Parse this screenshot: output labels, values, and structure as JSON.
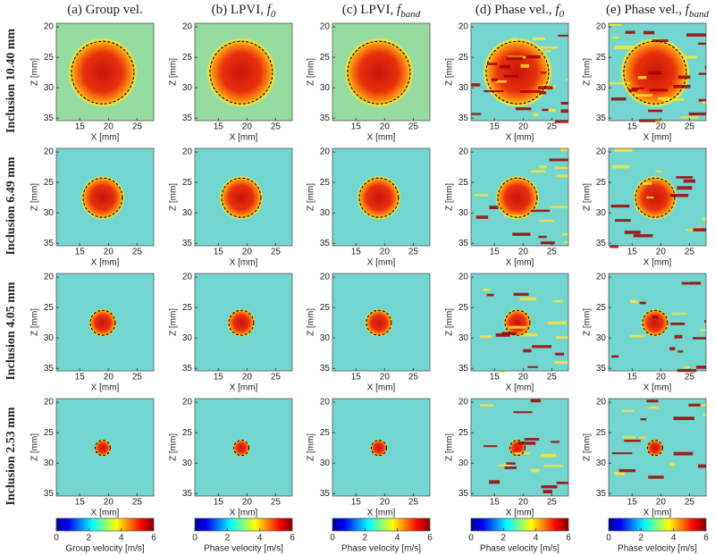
{
  "columns": [
    {
      "prefix": "(a) Group vel."
    },
    {
      "prefix": "(b) LPVI, ",
      "symbol": "f",
      "sub": "0"
    },
    {
      "prefix": "(c) LPVI, ",
      "symbol": "f",
      "sub": "band"
    },
    {
      "prefix": "(d) Phase vel., ",
      "symbol": "f",
      "sub": "0"
    },
    {
      "prefix": "(e) Phase vel., ",
      "symbol": "f",
      "sub": "band"
    }
  ],
  "rows": [
    {
      "label": "Inclusion 10.40 mm"
    },
    {
      "label": "Inclusion 6.49 mm"
    },
    {
      "label": "Inclusion 4.05 mm"
    },
    {
      "label": "Inclusion 2.53 mm"
    }
  ],
  "axes": {
    "xlabel": "X [mm]",
    "ylabel": "Z [mm]",
    "xticks": [
      15,
      20,
      25
    ],
    "yticks": [
      20,
      25,
      30,
      35
    ]
  },
  "colorbars": [
    {
      "label": "Group velocity [m/s]",
      "ticks": [
        0,
        2,
        4,
        6
      ]
    },
    {
      "label": "Phase velocity [m/s]",
      "ticks": [
        0,
        2,
        4,
        6
      ]
    },
    {
      "label": "Phase velocity [m/s]",
      "ticks": [
        0,
        2,
        4,
        6
      ]
    },
    {
      "label": "Phase velocity [m/s]",
      "ticks": [
        0,
        2,
        4,
        6
      ]
    },
    {
      "label": "Phase velocity [m/s]",
      "ticks": [
        0,
        2,
        4,
        6
      ]
    }
  ]
}
